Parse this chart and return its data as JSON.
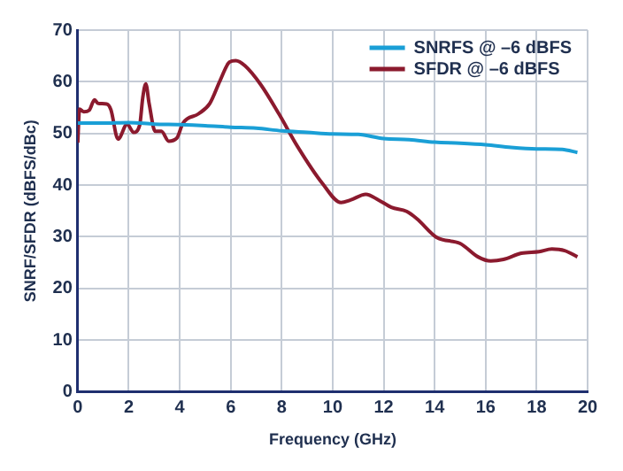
{
  "chart_data": {
    "type": "line",
    "xlabel": "Frequency (GHz)",
    "ylabel": "SNRF/SFDR (dBFS/dBc)",
    "xlim": [
      0,
      20
    ],
    "xticks": [
      0,
      2,
      4,
      6,
      8,
      10,
      12,
      14,
      16,
      18,
      20
    ],
    "ylim": [
      0,
      70
    ],
    "yticks": [
      0,
      10,
      20,
      30,
      40,
      50,
      60,
      70
    ],
    "grid": true,
    "legend": "top right",
    "marker": "none",
    "line_style": "solid",
    "series": [
      {
        "name": "SNRFS @ –6 dBFS",
        "color": "#1a9fd6",
        "x": [
          0,
          1,
          2,
          3,
          4,
          5,
          6,
          7,
          8,
          9,
          10,
          11,
          12,
          13,
          14,
          15,
          16,
          17,
          18,
          19,
          19.6
        ],
        "values": [
          52.0,
          52.0,
          52.1,
          51.8,
          51.7,
          51.5,
          51.2,
          51.0,
          50.5,
          50.2,
          49.9,
          49.8,
          49.0,
          48.8,
          48.3,
          48.1,
          47.8,
          47.3,
          47.0,
          46.9,
          46.3
        ]
      },
      {
        "name": "SFDR @ –6 dBFS",
        "color": "#8b1a2e",
        "x": [
          0,
          0.07,
          0.24,
          0.45,
          0.66,
          0.8,
          1.14,
          1.3,
          1.58,
          1.94,
          2.19,
          2.43,
          2.55,
          2.67,
          2.8,
          3.04,
          3.28,
          3.57,
          3.89,
          4.13,
          4.74,
          5.18,
          5.59,
          5.95,
          6.2,
          6.56,
          7.17,
          7.9,
          8.63,
          9.6,
          10.33,
          10.7,
          11.3,
          11.8,
          12.3,
          12.9,
          13.3,
          14.1,
          15.0,
          15.7,
          16.2,
          16.7,
          17.4,
          18.1,
          18.6,
          19.1,
          19.6
        ],
        "values": [
          48.2,
          54.7,
          54.2,
          54.5,
          56.5,
          55.8,
          55.7,
          54.6,
          48.9,
          51.8,
          50.2,
          51.6,
          56.9,
          59.6,
          55.8,
          50.4,
          50.4,
          48.5,
          49.1,
          52.0,
          53.8,
          55.8,
          60.3,
          63.8,
          64.1,
          63.1,
          59.5,
          53.7,
          47.4,
          40.3,
          36.6,
          37.1,
          38.2,
          37.1,
          35.7,
          34.9,
          33.5,
          29.8,
          28.7,
          26.1,
          25.3,
          25.6,
          26.8,
          27.1,
          27.6,
          27.3,
          26.1
        ]
      }
    ]
  }
}
